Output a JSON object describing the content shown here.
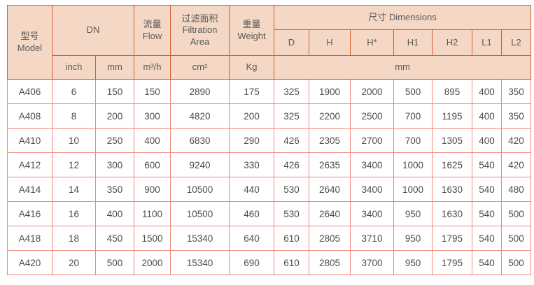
{
  "header": {
    "model_zh": "型号",
    "model_en": "Model",
    "dn": "DN",
    "flow_zh": "流量",
    "flow_en": "Flow",
    "filtration_zh": "过滤面积",
    "filtration_en": "Filtration Area",
    "weight_zh": "重量",
    "weight_en": "Weight",
    "dimensions": "尺寸 Dimensions",
    "dim_cols": [
      "D",
      "H",
      "H*",
      "H1",
      "H2",
      "L1",
      "L2"
    ]
  },
  "units": {
    "inch": "inch",
    "mm": "mm",
    "flow": "m³/h",
    "area": "cm²",
    "weight": "Kg",
    "dims": "mm"
  },
  "rows": [
    [
      "A406",
      "6",
      "150",
      "150",
      "2890",
      "175",
      "325",
      "1900",
      "2000",
      "500",
      "895",
      "400",
      "350"
    ],
    [
      "A408",
      "8",
      "200",
      "300",
      "4820",
      "200",
      "325",
      "2200",
      "2500",
      "700",
      "1195",
      "400",
      "350"
    ],
    [
      "A410",
      "10",
      "250",
      "400",
      "6830",
      "290",
      "426",
      "2305",
      "2700",
      "700",
      "1305",
      "400",
      "420"
    ],
    [
      "A412",
      "12",
      "300",
      "600",
      "9240",
      "330",
      "426",
      "2635",
      "3400",
      "1000",
      "1625",
      "540",
      "420"
    ],
    [
      "A414",
      "14",
      "350",
      "900",
      "10500",
      "440",
      "530",
      "2640",
      "3400",
      "1000",
      "1630",
      "540",
      "480"
    ],
    [
      "A416",
      "16",
      "400",
      "1100",
      "10500",
      "460",
      "530",
      "2640",
      "3400",
      "950",
      "1630",
      "540",
      "500"
    ],
    [
      "A418",
      "18",
      "450",
      "1500",
      "15340",
      "640",
      "610",
      "2805",
      "3710",
      "950",
      "1795",
      "540",
      "500"
    ],
    [
      "A420",
      "20",
      "500",
      "2000",
      "15340",
      "690",
      "610",
      "2805",
      "3700",
      "950",
      "1795",
      "540",
      "500"
    ]
  ],
  "colors": {
    "header-bg": "#f4d8c5",
    "border-strong": "#dc5a31",
    "border-light": "#f0887c",
    "header-text": "#595959",
    "cell-text": "#4c4c4c",
    "page-bg": "#ffffff"
  }
}
